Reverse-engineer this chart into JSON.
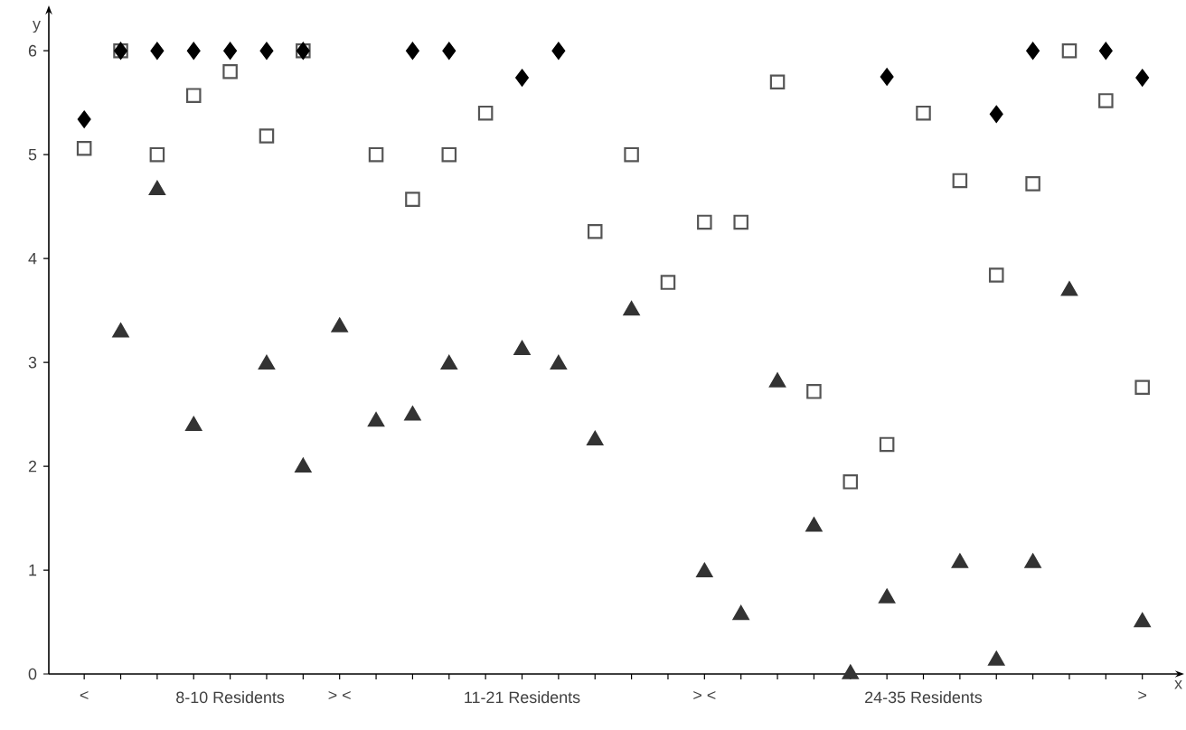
{
  "chart_data": {
    "type": "scatter",
    "xlabel": "x",
    "ylabel": "y",
    "categories": [
      "<",
      null,
      null,
      null,
      "8-10 Residents",
      null,
      null,
      "> <",
      null,
      null,
      null,
      null,
      "11-21 Residents",
      null,
      null,
      null,
      null,
      "> <",
      null,
      null,
      null,
      null,
      null,
      "24-35 Residents",
      null,
      null,
      null,
      null,
      null,
      ">"
    ],
    "ylim": [
      0,
      6.35
    ],
    "yticks": [
      0,
      1,
      2,
      3,
      4,
      5,
      6
    ],
    "grid": false,
    "series": [
      {
        "color": "#000000",
        "marker": "diamond",
        "values": [
          5.34,
          6,
          6,
          6,
          6,
          6,
          6,
          null,
          null,
          6,
          6,
          null,
          5.74,
          6,
          null,
          null,
          null,
          null,
          null,
          null,
          null,
          null,
          5.75,
          null,
          null,
          5.39,
          6,
          null,
          6,
          5.74
        ]
      },
      {
        "color": "#555555",
        "marker": "square",
        "values": [
          5.06,
          6,
          5.0,
          5.57,
          5.8,
          5.18,
          6,
          null,
          5.0,
          4.57,
          5.0,
          5.4,
          null,
          null,
          4.26,
          5.0,
          3.77,
          4.35,
          4.35,
          5.7,
          2.72,
          1.85,
          2.21,
          5.4,
          4.75,
          3.84,
          4.72,
          6,
          5.52,
          2.76
        ]
      },
      {
        "color": "#333333",
        "marker": "triangle",
        "values": [
          null,
          3.29,
          4.66,
          2.39,
          null,
          2.98,
          1.99,
          3.34,
          2.43,
          2.49,
          2.98,
          null,
          3.12,
          2.98,
          2.25,
          3.5,
          null,
          0.98,
          0.57,
          2.81,
          1.42,
          0.0,
          0.73,
          null,
          1.07,
          0.13,
          1.07,
          3.69,
          null,
          0.5
        ]
      }
    ]
  }
}
